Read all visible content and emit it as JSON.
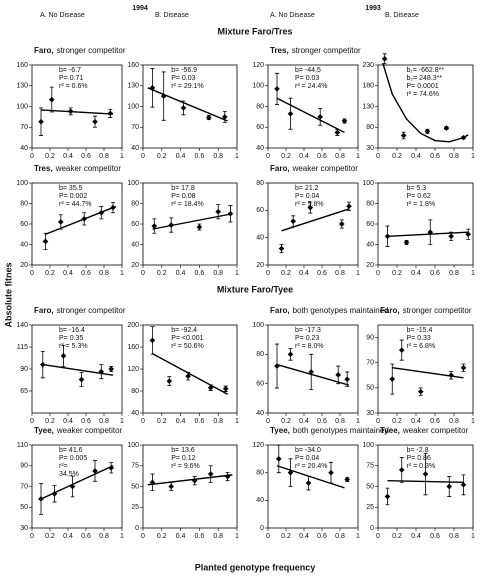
{
  "years": [
    "1994",
    "1993"
  ],
  "column_headers": [
    "A. No Disease",
    "B. Disease",
    "A. No Disease",
    "B. Disease"
  ],
  "section_titles": [
    "Mixture Faro/Tres",
    "Mixture Faro/Tyee"
  ],
  "ylabel": "Absolute fitnes",
  "xlabel": "Planted genotype frequency",
  "chart_data": [
    {
      "type": "scatter",
      "title": "Faro,",
      "subtitle": "stronger competitor",
      "annotations": [
        "b= -6.7",
        "P= 0.71",
        "r² = 0.6%"
      ],
      "x": [
        0.1,
        0.22,
        0.43,
        0.7,
        0.87
      ],
      "values": [
        78,
        110,
        93,
        78,
        90
      ],
      "errors": [
        20,
        18,
        5,
        8,
        6
      ],
      "fit": {
        "x": [
          0.1,
          0.9
        ],
        "y": [
          95,
          89
        ]
      },
      "xlim": [
        0,
        1
      ],
      "xticks": [
        0,
        0.2,
        0.4,
        0.6,
        0.8,
        1
      ],
      "ylim": [
        40,
        160
      ],
      "yticks": [
        40,
        70,
        100,
        130,
        160
      ]
    },
    {
      "type": "scatter",
      "title": "",
      "subtitle": "",
      "annotations": [
        "b= -56.9",
        "P= 0.03",
        "r² = 29.1%"
      ],
      "x": [
        0.1,
        0.22,
        0.43,
        0.7,
        0.87
      ],
      "values": [
        127,
        115,
        98,
        84,
        85
      ],
      "errors": [
        28,
        35,
        10,
        3,
        8
      ],
      "fit": {
        "x": [
          0.05,
          0.9
        ],
        "y": [
          127,
          79
        ]
      },
      "xlim": [
        0,
        1
      ],
      "xticks": [
        0,
        0.2,
        0.4,
        0.6,
        0.8,
        1
      ],
      "ylim": [
        40,
        160
      ],
      "yticks": [
        40,
        70,
        100,
        130,
        160
      ]
    },
    {
      "type": "scatter",
      "title": "Tres,",
      "subtitle": "stronger competitor",
      "annotations": [
        "b= -44.5",
        "P= 0.03",
        "r² = 24.4%"
      ],
      "x": [
        0.1,
        0.25,
        0.58,
        0.77,
        0.85
      ],
      "values": [
        97,
        73,
        70,
        55,
        66
      ],
      "errors": [
        15,
        15,
        8,
        3,
        2
      ],
      "fit": {
        "x": [
          0.1,
          0.85
        ],
        "y": [
          88,
          55
        ]
      },
      "xlim": [
        0,
        1
      ],
      "xticks": [
        0,
        0.2,
        0.4,
        0.6,
        0.8,
        1
      ],
      "ylim": [
        40,
        120
      ],
      "yticks": [
        40,
        60,
        80,
        100,
        120
      ]
    },
    {
      "type": "scatter",
      "title": "",
      "subtitle": "",
      "annotations": [
        "b₁= -662.8**",
        "b₂= 248.3**",
        "P= 0.0001",
        "r² = 74.6%"
      ],
      "x": [
        0.07,
        0.27,
        0.52,
        0.72,
        0.9
      ],
      "values": [
        245,
        60,
        70,
        78,
        55
      ],
      "errors": [
        12,
        8,
        5,
        3,
        3
      ],
      "fit": {
        "x": [
          0.05,
          0.15,
          0.3,
          0.45,
          0.6,
          0.75,
          0.9,
          0.95
        ],
        "y": [
          235,
          160,
          100,
          65,
          48,
          45,
          55,
          62
        ]
      },
      "xlim": [
        0,
        1
      ],
      "xticks": [
        0,
        0.2,
        0.4,
        0.6,
        0.8,
        1
      ],
      "ylim": [
        30,
        230
      ],
      "yticks": [
        30,
        80,
        130,
        180,
        230
      ]
    },
    {
      "type": "scatter",
      "title": "Tres,",
      "subtitle": "weaker competitor",
      "annotations": [
        "b= 35.5",
        "P= 0.002",
        "r² = 44.7%"
      ],
      "x": [
        0.15,
        0.32,
        0.58,
        0.77,
        0.9
      ],
      "values": [
        43,
        62,
        65,
        71,
        76
      ],
      "errors": [
        8,
        7,
        6,
        6,
        5
      ],
      "fit": {
        "x": [
          0.15,
          0.93
        ],
        "y": [
          50,
          77
        ]
      },
      "xlim": [
        0,
        1
      ],
      "xticks": [
        0,
        0.2,
        0.4,
        0.6,
        0.8,
        1
      ],
      "ylim": [
        20,
        100
      ],
      "yticks": [
        20,
        40,
        60,
        80,
        100
      ]
    },
    {
      "type": "scatter",
      "title": "",
      "subtitle": "",
      "annotations": [
        "b= 17.8",
        "P= 0.08",
        "r² = 18.4%"
      ],
      "x": [
        0.12,
        0.3,
        0.6,
        0.8,
        0.93
      ],
      "values": [
        58,
        59,
        57,
        72,
        70
      ],
      "errors": [
        7,
        7,
        3,
        7,
        8
      ],
      "fit": {
        "x": [
          0.1,
          0.95
        ],
        "y": [
          55,
          70
        ]
      },
      "xlim": [
        0,
        1
      ],
      "xticks": [
        0,
        0.2,
        0.4,
        0.6,
        0.8,
        1
      ],
      "ylim": [
        20,
        100
      ],
      "yticks": [
        20,
        40,
        60,
        80,
        100
      ]
    },
    {
      "type": "scatter",
      "title": "Faro,",
      "subtitle": "weaker competitor",
      "annotations": [
        "b= 21.2",
        "P= 0.04",
        "r² = 5.8%"
      ],
      "x": [
        0.15,
        0.28,
        0.47,
        0.82,
        0.9
      ],
      "values": [
        32,
        52,
        62,
        50,
        63
      ],
      "errors": [
        3,
        4,
        4,
        3,
        3
      ],
      "fit": {
        "x": [
          0.15,
          0.9
        ],
        "y": [
          45,
          61
        ]
      },
      "xlim": [
        0,
        1
      ],
      "xticks": [
        0,
        0.2,
        0.4,
        0.6,
        0.8,
        1
      ],
      "ylim": [
        20,
        80
      ],
      "yticks": [
        20,
        40,
        60,
        80
      ]
    },
    {
      "type": "scatter",
      "title": "",
      "subtitle": "",
      "annotations": [
        "b= 5.3",
        "P= 0.62",
        "r² = 1.8%"
      ],
      "x": [
        0.1,
        0.3,
        0.55,
        0.77,
        0.95
      ],
      "values": [
        48,
        42,
        52,
        48,
        50
      ],
      "errors": [
        10,
        2,
        12,
        4,
        5
      ],
      "fit": {
        "x": [
          0.1,
          0.95
        ],
        "y": [
          48,
          52
        ]
      },
      "xlim": [
        0,
        1
      ],
      "xticks": [
        0,
        0.2,
        0.4,
        0.6,
        0.8,
        1
      ],
      "ylim": [
        20,
        100
      ],
      "yticks": [
        20,
        40,
        60,
        80,
        100
      ]
    },
    {
      "type": "scatter",
      "title": "Faro,",
      "subtitle": "stronger competitor",
      "annotations": [
        "b= -16.4",
        "P= 0.35",
        "r² = 5.3%"
      ],
      "x": [
        0.12,
        0.35,
        0.55,
        0.77,
        0.88
      ],
      "values": [
        95,
        105,
        78,
        87,
        90
      ],
      "errors": [
        15,
        12,
        8,
        8,
        3
      ],
      "fit": {
        "x": [
          0.12,
          0.9
        ],
        "y": [
          95,
          83
        ]
      },
      "xlim": [
        0,
        1
      ],
      "xticks": [
        0,
        0.2,
        0.4,
        0.6,
        0.8,
        1
      ],
      "ylim": [
        40,
        140
      ],
      "yticks": [
        65,
        90,
        115,
        140
      ]
    },
    {
      "type": "scatter",
      "title": "",
      "subtitle": "",
      "annotations": [
        "b= -92.4",
        "P= <0.001",
        "r² = 50.6%"
      ],
      "x": [
        0.1,
        0.28,
        0.48,
        0.72,
        0.88
      ],
      "values": [
        172,
        98,
        107,
        86,
        84
      ],
      "errors": [
        25,
        8,
        7,
        5,
        5
      ],
      "fit": {
        "x": [
          0.1,
          0.9
        ],
        "y": [
          148,
          74
        ]
      },
      "xlim": [
        0,
        1
      ],
      "xticks": [
        0,
        0.2,
        0.4,
        0.6,
        0.8,
        1
      ],
      "ylim": [
        40,
        200
      ],
      "yticks": [
        40,
        80,
        120,
        160,
        200
      ]
    },
    {
      "type": "scatter",
      "title": "Faro,",
      "subtitle": "both genotypes maintained",
      "annotations": [
        "b= -17.3",
        "P= 0.23",
        "r² = 8.0%"
      ],
      "x": [
        0.1,
        0.25,
        0.48,
        0.78,
        0.88
      ],
      "values": [
        72,
        80,
        68,
        66,
        63
      ],
      "errors": [
        15,
        4,
        12,
        6,
        5
      ],
      "fit": {
        "x": [
          0.1,
          0.9
        ],
        "y": [
          73,
          59
        ]
      },
      "xlim": [
        0,
        1
      ],
      "xticks": [
        0,
        0.2,
        0.4,
        0.6,
        0.8,
        1
      ],
      "ylim": [
        40,
        100
      ],
      "yticks": [
        40,
        60,
        80,
        100
      ]
    },
    {
      "type": "scatter",
      "title": "Faro,",
      "subtitle": "stronger competitor",
      "annotations": [
        "b= -15.4",
        "P= 0.33",
        "r² = 6.8%"
      ],
      "x": [
        0.15,
        0.25,
        0.45,
        0.77,
        0.9
      ],
      "values": [
        57,
        80,
        47,
        60,
        66
      ],
      "errors": [
        12,
        8,
        3,
        3,
        3
      ],
      "fit": {
        "x": [
          0.15,
          0.9
        ],
        "y": [
          66,
          58
        ]
      },
      "xlim": [
        0,
        1
      ],
      "xticks": [
        0,
        0.2,
        0.4,
        0.6,
        0.8,
        1
      ],
      "ylim": [
        30,
        100
      ],
      "yticks": [
        30,
        50,
        70,
        90
      ]
    },
    {
      "type": "scatter",
      "title": "Tyee,",
      "subtitle": "weaker competitor",
      "annotations": [
        "b= 41.6",
        "P= 0.005",
        "r²=",
        "34.5%"
      ],
      "x": [
        0.1,
        0.25,
        0.45,
        0.7,
        0.88
      ],
      "values": [
        58,
        63,
        70,
        85,
        88
      ],
      "errors": [
        15,
        8,
        10,
        10,
        5
      ],
      "fit": {
        "x": [
          0.1,
          0.9
        ],
        "y": [
          58,
          90
        ]
      },
      "xlim": [
        0,
        1
      ],
      "xticks": [
        0,
        0.2,
        0.4,
        0.6,
        0.8,
        1
      ],
      "ylim": [
        30,
        110
      ],
      "yticks": [
        30,
        50,
        70,
        90,
        110
      ]
    },
    {
      "type": "scatter",
      "title": "",
      "subtitle": "",
      "annotations": [
        "b= 13.6",
        "P= 0.12",
        "r² = 9.6%"
      ],
      "x": [
        0.1,
        0.3,
        0.55,
        0.72,
        0.9
      ],
      "values": [
        55,
        50,
        57,
        65,
        62
      ],
      "errors": [
        10,
        5,
        5,
        10,
        5
      ],
      "fit": {
        "x": [
          0.05,
          0.95
        ],
        "y": [
          52,
          64
        ]
      },
      "xlim": [
        0,
        1
      ],
      "xticks": [
        0,
        0.2,
        0.4,
        0.6,
        0.8,
        1
      ],
      "ylim": [
        0,
        100
      ],
      "yticks": [
        0,
        25,
        50,
        75,
        100
      ]
    },
    {
      "type": "scatter",
      "title": "Tyee,",
      "subtitle": "both genotypes maintained",
      "annotations": [
        "b= -34.0",
        "P= 0.04",
        "r² = 20.4%"
      ],
      "x": [
        0.12,
        0.25,
        0.45,
        0.7,
        0.88
      ],
      "values": [
        100,
        80,
        65,
        80,
        70
      ],
      "errors": [
        20,
        20,
        10,
        15,
        3
      ],
      "fit": {
        "x": [
          0.1,
          0.85
        ],
        "y": [
          90,
          58
        ]
      },
      "xlim": [
        0,
        1
      ],
      "xticks": [
        0,
        0.2,
        0.4,
        0.6,
        0.8,
        1
      ],
      "ylim": [
        0,
        120
      ],
      "yticks": [
        0,
        40,
        80,
        120
      ]
    },
    {
      "type": "scatter",
      "title": "Tyee,",
      "subtitle": "weaker competitor",
      "annotations": [
        "b= -2.8",
        "P= 0.86",
        "r² = 0.3%"
      ],
      "x": [
        0.1,
        0.25,
        0.5,
        0.75,
        0.9
      ],
      "values": [
        38,
        70,
        65,
        50,
        52
      ],
      "errors": [
        10,
        15,
        25,
        12,
        12
      ],
      "fit": {
        "x": [
          0.1,
          0.9
        ],
        "y": [
          57,
          55
        ]
      },
      "xlim": [
        0,
        1
      ],
      "xticks": [
        0,
        0.2,
        0.4,
        0.6,
        0.8,
        1
      ],
      "ylim": [
        0,
        100
      ],
      "yticks": [
        0,
        25,
        50,
        75,
        100
      ]
    }
  ]
}
